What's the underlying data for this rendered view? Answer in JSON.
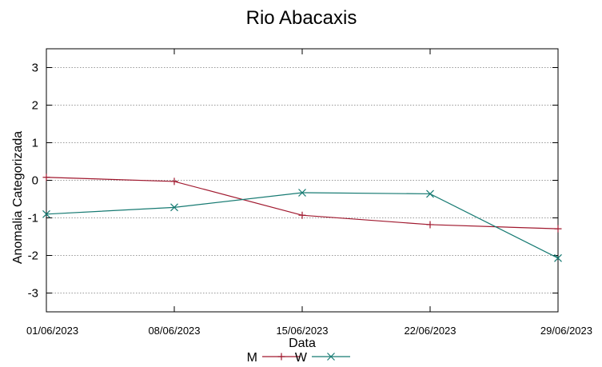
{
  "chart_data": {
    "type": "line",
    "title": "Rio Abacaxis",
    "xlabel": "Data",
    "ylabel": "Anomalia Categorizada",
    "categories": [
      "01/06/2023",
      "08/06/2023",
      "15/06/2023",
      "22/06/2023",
      "29/06/2023"
    ],
    "ylim": [
      -3.5,
      3.5
    ],
    "yticks": [
      -3,
      -2,
      -1,
      0,
      1,
      2,
      3
    ],
    "grid": true,
    "legend": "bottom-center",
    "series": [
      {
        "name": "M",
        "color": "#a0182e",
        "marker": "plus",
        "values": [
          0.08,
          -0.03,
          -0.93,
          -1.18,
          -1.29
        ]
      },
      {
        "name": "W",
        "color": "#167a72",
        "marker": "cross",
        "values": [
          -0.9,
          -0.72,
          -0.33,
          -0.36,
          -2.07
        ]
      }
    ]
  }
}
